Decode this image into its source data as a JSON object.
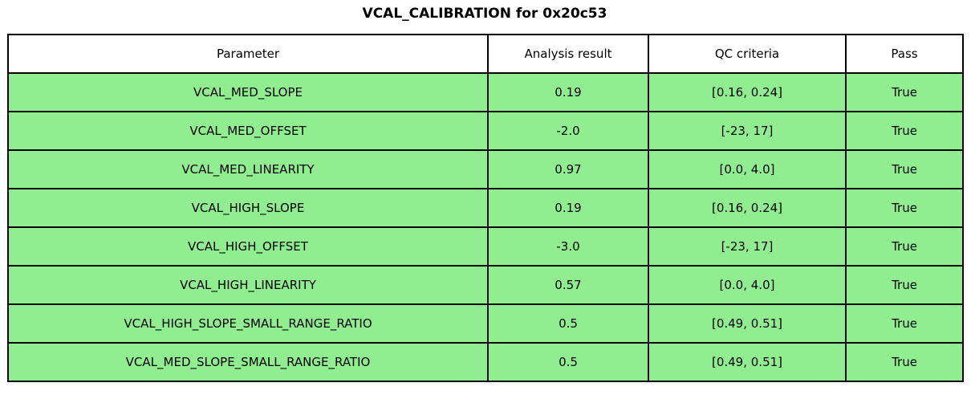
{
  "title": "VCAL_CALIBRATION for 0x20c53",
  "colors": {
    "pass_row_background": "#90ee90",
    "header_background": "#ffffff",
    "border": "#000000",
    "text": "#000000"
  },
  "chart_data": {
    "type": "table",
    "title": "VCAL_CALIBRATION for 0x20c53",
    "columns": [
      "Parameter",
      "Analysis result",
      "QC criteria",
      "Pass"
    ],
    "rows": [
      [
        "VCAL_MED_SLOPE",
        "0.19",
        "[0.16, 0.24]",
        "True"
      ],
      [
        "VCAL_MED_OFFSET",
        "-2.0",
        "[-23, 17]",
        "True"
      ],
      [
        "VCAL_MED_LINEARITY",
        "0.97",
        "[0.0, 4.0]",
        "True"
      ],
      [
        "VCAL_HIGH_SLOPE",
        "0.19",
        "[0.16, 0.24]",
        "True"
      ],
      [
        "VCAL_HIGH_OFFSET",
        "-3.0",
        "[-23, 17]",
        "True"
      ],
      [
        "VCAL_HIGH_LINEARITY",
        "0.57",
        "[0.0, 4.0]",
        "True"
      ],
      [
        "VCAL_HIGH_SLOPE_SMALL_RANGE_RATIO",
        "0.5",
        "[0.49, 0.51]",
        "True"
      ],
      [
        "VCAL_MED_SLOPE_SMALL_RANGE_RATIO",
        "0.5",
        "[0.49, 0.51]",
        "True"
      ]
    ],
    "layout": {
      "grid": true,
      "all_rows_pass": true,
      "row_highlight_color": "#90ee90"
    }
  }
}
